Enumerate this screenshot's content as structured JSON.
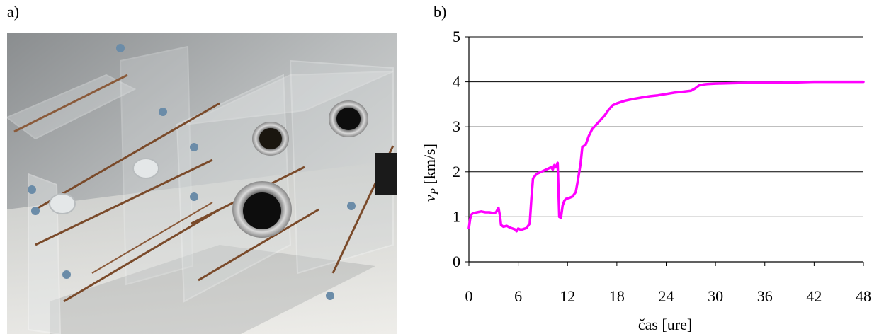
{
  "panels": {
    "a": "a)",
    "b": "b)"
  },
  "photo": {
    "subject": "acrylic-box-test-apparatus"
  },
  "chart_data": {
    "type": "line",
    "xlabel": "čas [ure]",
    "ylabel_symbol": "v",
    "ylabel_subscript": "P",
    "ylabel_unit": " [km/s]",
    "xlim": [
      0,
      48
    ],
    "ylim": [
      0,
      5
    ],
    "xticks": [
      0,
      6,
      12,
      18,
      24,
      30,
      36,
      42,
      48
    ],
    "yticks": [
      0,
      1,
      2,
      3,
      4,
      5
    ],
    "grid": "horizontal",
    "legend": "none",
    "line_color": "#ff00ff",
    "series": [
      {
        "x": [
          0,
          0.15,
          0.3,
          0.5,
          1.0,
          1.5,
          2.0,
          2.5,
          3.0,
          3.3,
          3.6,
          3.8,
          3.9,
          4.2,
          4.6,
          5.0,
          5.3,
          5.6,
          5.8,
          6.0,
          6.2,
          6.5,
          7.0,
          7.4,
          7.6,
          7.8,
          8.2,
          8.8,
          9.4,
          10.0,
          10.2,
          10.4,
          10.6,
          10.8,
          11.0,
          11.2,
          11.4,
          11.6,
          11.8,
          12.2,
          12.6,
          13.0,
          13.3,
          13.6,
          13.8,
          14.2,
          14.6,
          15.0,
          15.5,
          16.0,
          16.5,
          17.0,
          17.5,
          18.0,
          19.0,
          20.0,
          21.0,
          22.0,
          23.0,
          24.0,
          25.0,
          26.0,
          27.0,
          27.5,
          28.0,
          28.5,
          29.0,
          30.0,
          32.0,
          34.0,
          36.0,
          38.0,
          40.0,
          42.0,
          44.0,
          46.0,
          48.0
        ],
        "y": [
          0.75,
          0.95,
          1.05,
          1.08,
          1.1,
          1.12,
          1.1,
          1.1,
          1.08,
          1.1,
          1.2,
          1.0,
          0.82,
          0.78,
          0.8,
          0.76,
          0.74,
          0.72,
          0.68,
          0.74,
          0.72,
          0.72,
          0.75,
          0.85,
          1.4,
          1.85,
          1.95,
          2.0,
          2.05,
          2.1,
          2.05,
          2.15,
          2.1,
          2.2,
          1.0,
          0.98,
          1.25,
          1.35,
          1.4,
          1.42,
          1.45,
          1.55,
          1.85,
          2.2,
          2.55,
          2.6,
          2.8,
          2.95,
          3.05,
          3.15,
          3.25,
          3.38,
          3.48,
          3.52,
          3.58,
          3.62,
          3.65,
          3.68,
          3.7,
          3.73,
          3.76,
          3.78,
          3.8,
          3.85,
          3.92,
          3.94,
          3.95,
          3.96,
          3.97,
          3.98,
          3.98,
          3.98,
          3.99,
          4.0,
          4.0,
          4.0,
          4.0
        ]
      }
    ]
  }
}
